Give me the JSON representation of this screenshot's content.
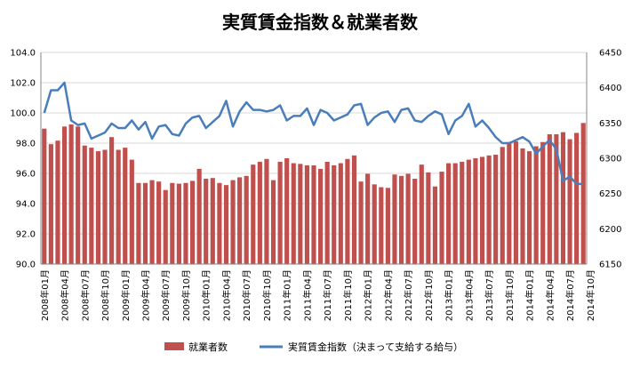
{
  "chart_data": {
    "type": "bar+line",
    "title": "実質賃金指数＆就業者数",
    "legend_position": "bottom",
    "grid": "horizontal",
    "y_left": {
      "min": 90.0,
      "max": 104.0,
      "step": 2.0,
      "ticks": [
        "90.0",
        "92.0",
        "94.0",
        "96.0",
        "98.0",
        "100.0",
        "102.0",
        "104.0"
      ]
    },
    "y_right": {
      "min": 6150,
      "max": 6450,
      "step": 50,
      "ticks": [
        "6150",
        "6200",
        "6250",
        "6300",
        "6350",
        "6400",
        "6450"
      ]
    },
    "x_tick_labels": [
      "2008年01月",
      "2008年04月",
      "2008年07月",
      "2008年10月",
      "2009年01月",
      "2009年04月",
      "2009年07月",
      "2009年10月",
      "2010年01月",
      "2010年04月",
      "2010年07月",
      "2010年10月",
      "2011年01月",
      "2011年04月",
      "2011年07月",
      "2011年10月",
      "2012年01月",
      "2012年04月",
      "2012年07月",
      "2012年10月",
      "2013年01月",
      "2013年04月",
      "2013年07月",
      "2013年10月",
      "2014年01月",
      "2014年04月",
      "2014年07月",
      "2014年10月"
    ],
    "series": [
      {
        "name": "就業者数",
        "type": "bar",
        "axis": "right",
        "color": "#C0504D",
        "values": [
          6342,
          6320,
          6325,
          6345,
          6348,
          6345,
          6318,
          6315,
          6310,
          6312,
          6330,
          6312,
          6315,
          6298,
          6265,
          6265,
          6269,
          6267,
          6255,
          6265,
          6264,
          6265,
          6268,
          6285,
          6271,
          6272,
          6265,
          6262,
          6269,
          6273,
          6275,
          6291,
          6295,
          6299,
          6269,
          6295,
          6300,
          6293,
          6292,
          6290,
          6290,
          6285,
          6295,
          6290,
          6293,
          6299,
          6304,
          6267,
          6278,
          6263,
          6259,
          6258,
          6277,
          6275,
          6278,
          6271,
          6291,
          6280,
          6260,
          6281,
          6293,
          6293,
          6295,
          6298,
          6300,
          6302,
          6304,
          6305,
          6316,
          6323,
          6324,
          6314,
          6310,
          6317,
          6323,
          6334,
          6334,
          6337,
          6327,
          6336,
          6350
        ],
        "note": "values in thousands of persons, read from right axis (6150-6450)"
      },
      {
        "name": "実質賃金指数（決まって支給する給与）",
        "type": "line",
        "axis": "left",
        "color": "#4A7EBB",
        "values": [
          100.0,
          101.5,
          101.5,
          102.0,
          99.5,
          99.2,
          99.3,
          98.3,
          98.5,
          98.7,
          99.3,
          99.0,
          99.0,
          99.5,
          98.9,
          99.4,
          98.3,
          99.1,
          99.2,
          98.6,
          98.5,
          99.3,
          99.7,
          99.8,
          99.0,
          99.4,
          99.8,
          100.8,
          99.1,
          100.1,
          100.7,
          100.2,
          100.2,
          100.1,
          100.2,
          100.5,
          99.5,
          99.8,
          99.8,
          100.3,
          99.2,
          100.2,
          100.0,
          99.5,
          99.7,
          99.9,
          100.5,
          100.6,
          99.2,
          99.7,
          100.0,
          100.1,
          99.4,
          100.2,
          100.3,
          99.5,
          99.4,
          99.8,
          100.1,
          99.9,
          98.6,
          99.5,
          99.8,
          100.6,
          99.1,
          99.5,
          99.0,
          98.4,
          98.0,
          98.0,
          98.2,
          98.4,
          98.1,
          97.3,
          97.8,
          98.2,
          97.6,
          95.5,
          95.8,
          95.3,
          95.3
        ]
      }
    ]
  }
}
